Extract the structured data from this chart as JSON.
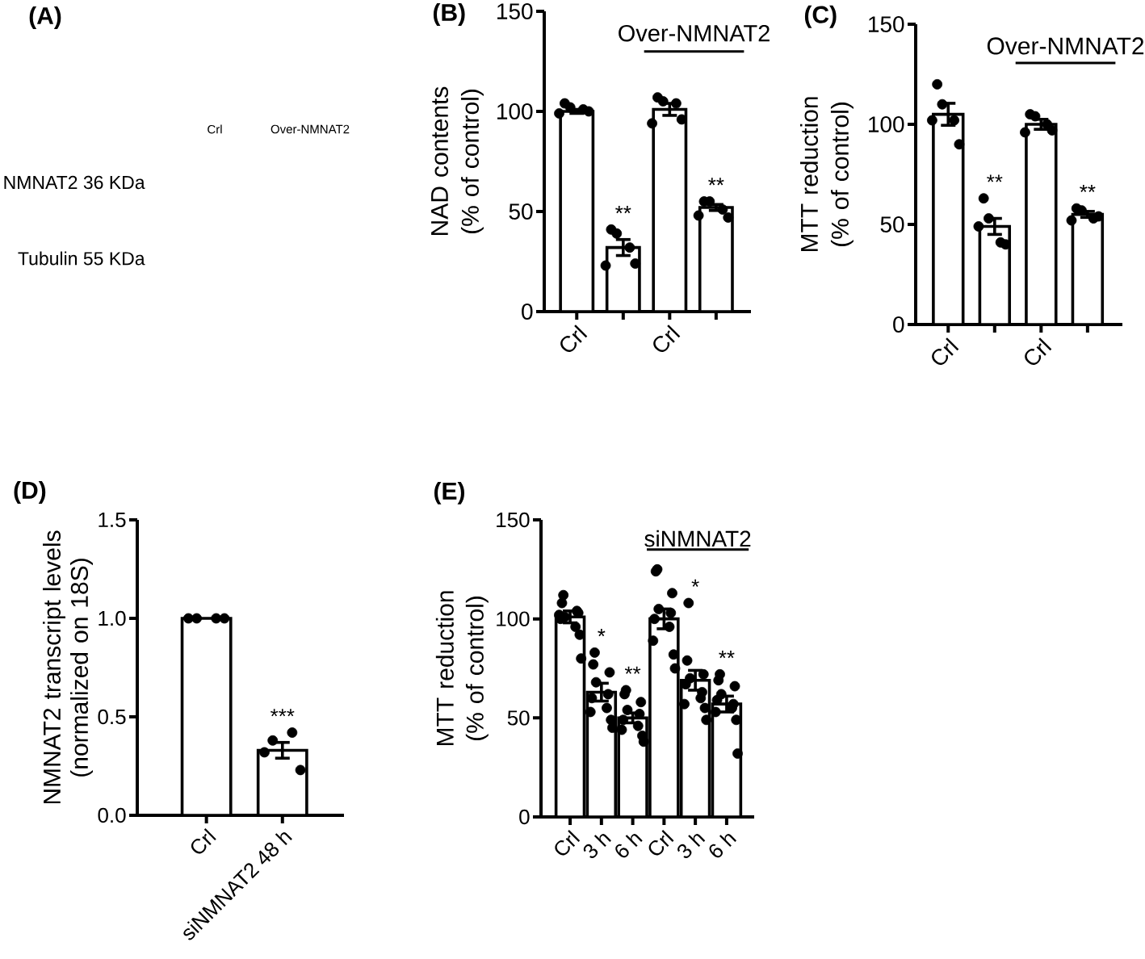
{
  "chart_data": [
    {
      "type": "other",
      "title": "(A)",
      "categories": [
        "Crl",
        "Over-NMNAT2"
      ],
      "y_categories": [
        "NMNAT2 36 KDa",
        "Tubulin 55 KDa"
      ]
    },
    {
      "type": "bar",
      "title": "(B)",
      "ylabel": "NAD contents (% of control)",
      "categories": [
        "Crl",
        null,
        "Crl",
        null
      ],
      "ylim": [
        0,
        150
      ],
      "yticks": [
        0,
        50,
        100,
        150
      ],
      "marker": "circle",
      "annotations": [
        "Over-NMNAT2"
      ],
      "series": [
        {
          "type": "bar",
          "color": "#ffffff",
          "values": [
            100,
            32,
            101,
            52
          ],
          "errors": [
            1,
            4,
            3,
            1.5
          ]
        },
        {
          "type": "scatter",
          "color": "#000000",
          "values": [
            102,
            39,
            105,
            55
          ]
        },
        {
          "type": "scatter",
          "color": "#000000",
          "values": [
            101,
            32,
            104,
            51
          ]
        },
        {
          "type": "scatter",
          "color": "#000000",
          "values": [
            104,
            41,
            107,
            55
          ],
          "value_labels": [
            null,
            "**",
            null,
            "**"
          ]
        },
        {
          "type": "scatter",
          "color": "#000000",
          "values": [
            100,
            24,
            96,
            47
          ]
        },
        {
          "type": "scatter",
          "color": "#000000",
          "values": [
            99,
            23,
            94,
            48
          ]
        }
      ]
    },
    {
      "type": "bar",
      "title": "(C)",
      "ylabel": "MTT reduction (% of control)",
      "categories": [
        "Crl",
        null,
        "Crl",
        null
      ],
      "ylim": [
        0,
        150
      ],
      "yticks": [
        0,
        50,
        100,
        150
      ],
      "marker": "circle",
      "annotations": [
        "Over-NMNAT2"
      ],
      "series": [
        {
          "type": "bar",
          "color": "#ffffff",
          "values": [
            105,
            49,
            100,
            55
          ],
          "errors": [
            5.5,
            4,
            2.5,
            1.5
          ]
        },
        {
          "type": "scatter",
          "color": "#000000",
          "values": [
            110,
            53,
            104,
            57
          ]
        },
        {
          "type": "scatter",
          "color": "#000000",
          "values": [
            102,
            41,
            100,
            53
          ]
        },
        {
          "type": "scatter",
          "color": "#000000",
          "values": [
            120,
            63,
            105,
            58
          ],
          "value_labels": [
            null,
            "**",
            null,
            "**"
          ]
        },
        {
          "type": "scatter",
          "color": "#000000",
          "values": [
            90,
            40,
            97,
            54
          ]
        },
        {
          "type": "scatter",
          "color": "#000000",
          "values": [
            102,
            49,
            96,
            52
          ]
        }
      ]
    },
    {
      "type": "bar",
      "title": "(D)",
      "ylabel": "NMNAT2 transcript levels (normalized on 18S)",
      "categories": [
        "Crl",
        "siNMNAT2 48 h"
      ],
      "ylim": [
        0,
        1.5
      ],
      "yticks": [
        {
          "value": 0,
          "label": "0.0"
        },
        0.5,
        {
          "value": 1,
          "label": "1.0"
        },
        1.5
      ],
      "marker": "circle",
      "series": [
        {
          "type": "bar",
          "color": "#ffffff",
          "values": [
            1,
            0.33
          ],
          "errors": [
            null,
            0.04
          ]
        },
        {
          "type": "scatter",
          "color": "#000000",
          "values": [
            1,
            0.38
          ]
        },
        {
          "type": "scatter",
          "color": "#000000",
          "values": [
            1,
            0.42
          ],
          "value_labels": [
            null,
            "***"
          ]
        },
        {
          "type": "scatter",
          "color": "#000000",
          "values": [
            1,
            0.32
          ]
        },
        {
          "type": "scatter",
          "color": "#000000",
          "values": [
            1,
            0.23
          ]
        }
      ]
    },
    {
      "type": "bar",
      "title": "(E)",
      "ylabel": "MTT reduction (% of control)",
      "categories": [
        "Crl",
        "3 h",
        "6 h",
        "Crl",
        "3 h",
        "6 h"
      ],
      "ylim": [
        0,
        150
      ],
      "yticks": [
        0,
        50,
        100,
        150
      ],
      "marker": "circle",
      "annotations": [
        "siNMNAT2"
      ],
      "series": [
        {
          "type": "bar",
          "color": "#ffffff",
          "values": [
            101,
            63,
            50,
            100,
            69,
            57
          ],
          "errors": [
            3,
            4.5,
            2.5,
            5,
            5,
            4
          ]
        },
        {
          "type": "scatter",
          "color": "#000000",
          "values": [
            101,
            68,
            54,
            105,
            70,
            62
          ]
        },
        {
          "type": "scatter",
          "color": "#000000",
          "values": [
            96,
            55,
            46,
            96,
            60,
            55
          ]
        },
        {
          "type": "scatter",
          "color": "#000000",
          "values": [
            112,
            83,
            64,
            125,
            108,
            72
          ],
          "value_labels": [
            null,
            "*",
            "**",
            null,
            "*",
            "**"
          ]
        },
        {
          "type": "scatter",
          "color": "#000000",
          "values": [
            104,
            62,
            52,
            103,
            63,
            57
          ]
        },
        {
          "type": "scatter",
          "color": "#000000",
          "values": [
            108,
            77,
            62,
            124,
            79,
            69
          ]
        },
        {
          "type": "scatter",
          "color": "#000000",
          "values": [
            103,
            73,
            58,
            113,
            72,
            66
          ]
        },
        {
          "type": "scatter",
          "color": "#000000",
          "values": [
            100,
            60,
            49,
            100,
            67,
            59
          ]
        },
        {
          "type": "scatter",
          "color": "#000000",
          "values": [
            92,
            49,
            41,
            82,
            55,
            49
          ]
        },
        {
          "type": "scatter",
          "color": "#000000",
          "values": [
            102,
            53,
            44,
            89,
            57,
            53
          ]
        },
        {
          "type": "scatter",
          "color": "#000000",
          "values": [
            80,
            45,
            38,
            75,
            49,
            32
          ]
        }
      ]
    }
  ]
}
